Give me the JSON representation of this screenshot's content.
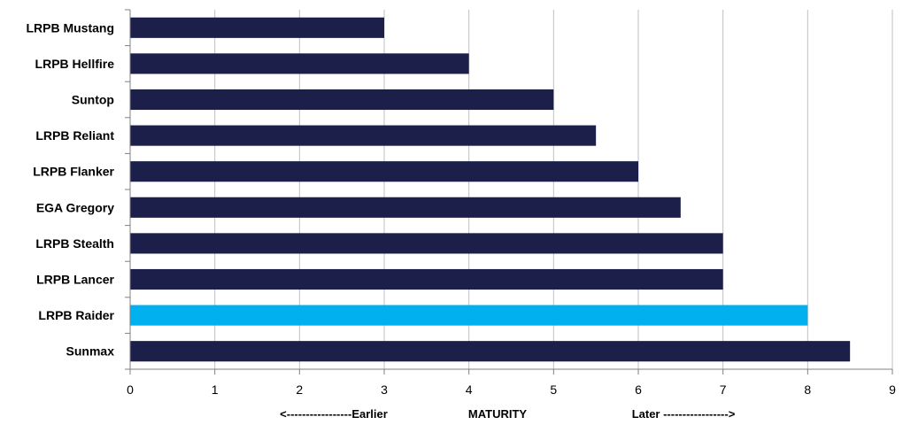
{
  "chart_data": {
    "type": "bar",
    "orientation": "horizontal",
    "categories": [
      "LRPB Mustang",
      "LRPB Hellfire",
      "Suntop",
      "LRPB Reliant",
      "LRPB Flanker",
      "EGA Gregory",
      "LRPB Stealth",
      "LRPB Lancer",
      "LRPB Raider",
      "Sunmax"
    ],
    "values": [
      3,
      4,
      5,
      5.5,
      6,
      6.5,
      7,
      7,
      8,
      8.5
    ],
    "highlight_index": 8,
    "colors": {
      "default": "#1b1f4a",
      "highlight": "#00b0ef",
      "grid": "#bfbfbf",
      "axis": "#808080"
    },
    "xlim": [
      0,
      9
    ],
    "xticks": [
      0,
      1,
      2,
      3,
      4,
      5,
      6,
      7,
      8,
      9
    ],
    "grid": "vertical",
    "title": "",
    "xlabel": {
      "left": "<-----------------Earlier",
      "center": "MATURITY",
      "right": "Later ----------------->"
    },
    "ylabel": ""
  }
}
